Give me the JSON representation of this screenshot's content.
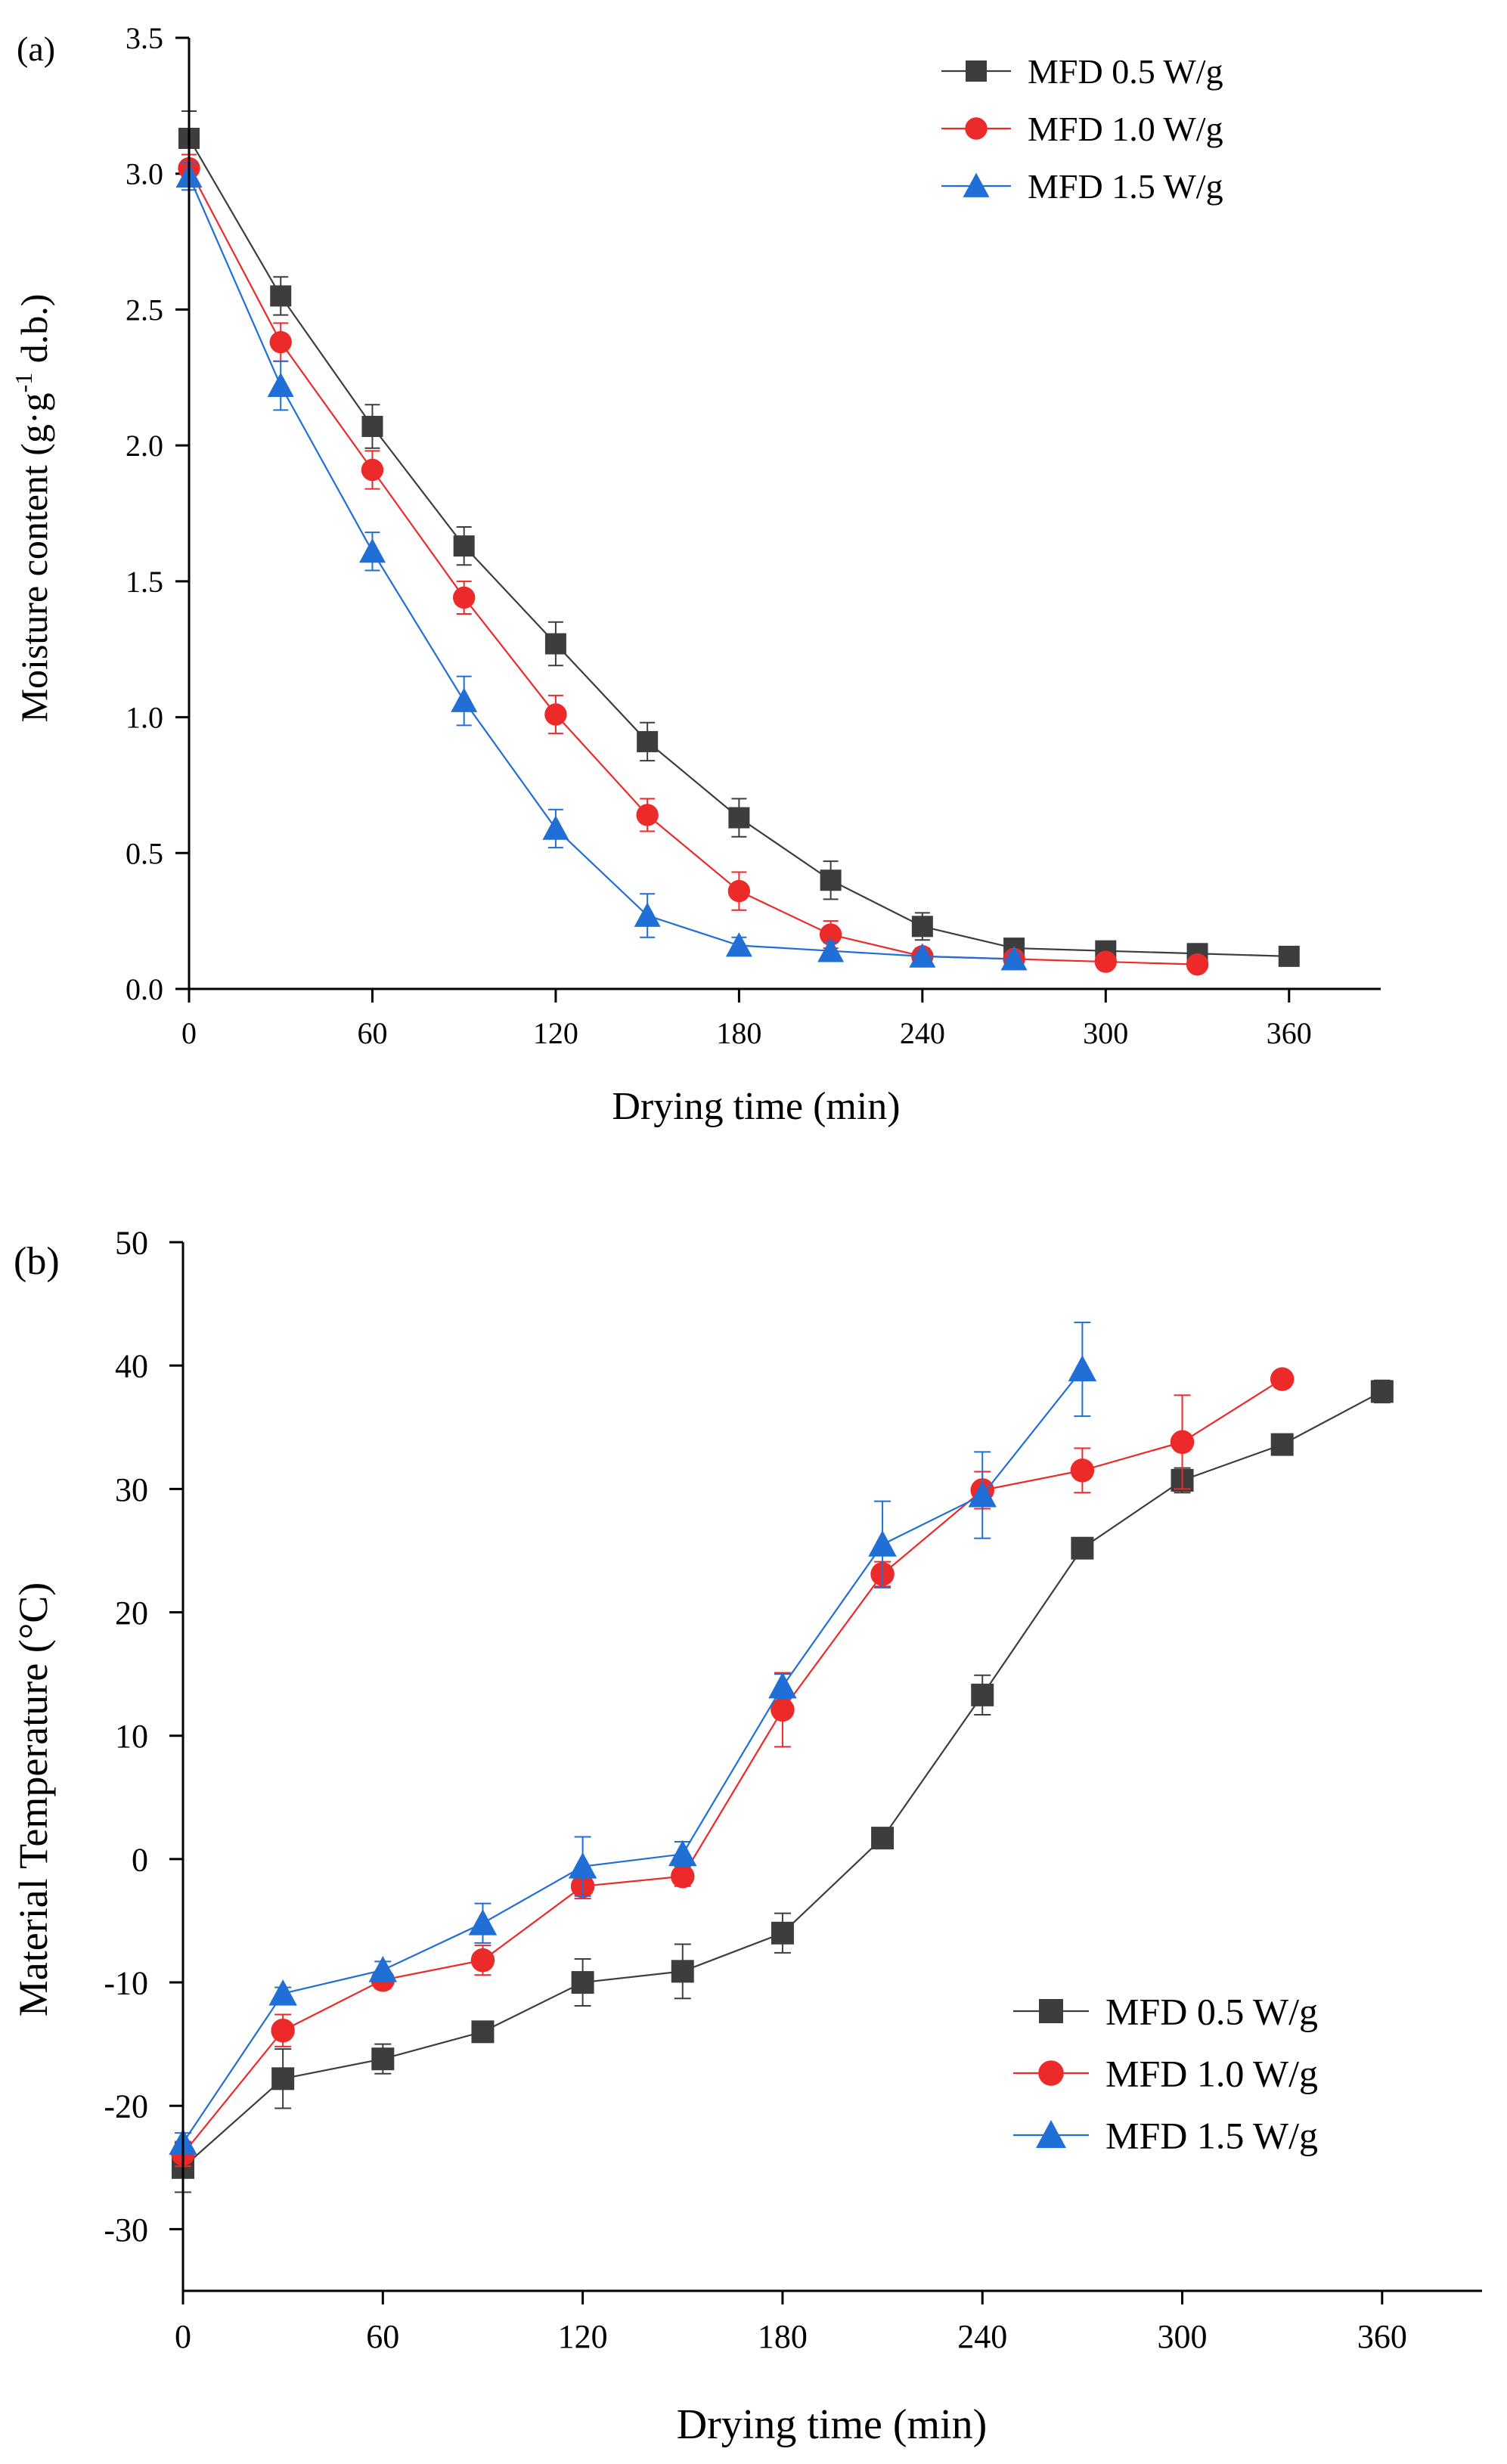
{
  "colors": {
    "series_0": "#3d3d3d",
    "series_1": "#ec2a2a",
    "series_2": "#1f6fd6",
    "axis": "#000000"
  },
  "chart_data": [
    {
      "panel_label": "(a)",
      "type": "line",
      "xlabel": "Drying time (min)",
      "ylabel_main": "Moisture content (g·g",
      "ylabel_sup": "-1",
      "ylabel_tail": " d.b.)",
      "xlim": [
        0,
        390
      ],
      "ylim": [
        0,
        3.5
      ],
      "xticks": [
        0,
        60,
        120,
        180,
        240,
        300,
        360
      ],
      "yticks": [
        0.0,
        0.5,
        1.0,
        1.5,
        2.0,
        2.5,
        3.0,
        3.5
      ],
      "xtick_labels": [
        "0",
        "60",
        "120",
        "180",
        "240",
        "300",
        "360"
      ],
      "ytick_labels": [
        "0.0",
        "0.5",
        "1.0",
        "1.5",
        "2.0",
        "2.5",
        "3.0",
        "3.5"
      ],
      "legend_position": "top-right",
      "series": [
        {
          "name": "MFD 0.5 W/g",
          "marker": "square",
          "x": [
            0,
            30,
            60,
            90,
            120,
            150,
            180,
            210,
            240,
            270,
            300,
            330,
            360
          ],
          "y": [
            3.13,
            2.55,
            2.07,
            1.63,
            1.27,
            0.91,
            0.63,
            0.4,
            0.23,
            0.15,
            0.14,
            0.13,
            0.12
          ],
          "err": [
            0.1,
            0.07,
            0.08,
            0.07,
            0.08,
            0.07,
            0.07,
            0.07,
            0.05,
            0.02,
            0.02,
            0.02,
            0.02
          ]
        },
        {
          "name": "MFD 1.0 W/g",
          "marker": "circle",
          "x": [
            0,
            30,
            60,
            90,
            120,
            150,
            180,
            210,
            240,
            270,
            300,
            330
          ],
          "y": [
            3.02,
            2.38,
            1.91,
            1.44,
            1.01,
            0.64,
            0.36,
            0.2,
            0.12,
            0.11,
            0.1,
            0.09
          ],
          "err": [
            0.05,
            0.07,
            0.07,
            0.06,
            0.07,
            0.06,
            0.07,
            0.05,
            0.03,
            0.02,
            0.02,
            0.02
          ]
        },
        {
          "name": "MFD 1.5 W/g",
          "marker": "triangle",
          "x": [
            0,
            30,
            60,
            90,
            120,
            150,
            180,
            210,
            240,
            270
          ],
          "y": [
            2.99,
            2.22,
            1.61,
            1.06,
            0.59,
            0.27,
            0.16,
            0.14,
            0.12,
            0.11
          ],
          "err": [
            0.05,
            0.09,
            0.07,
            0.09,
            0.07,
            0.08,
            0.03,
            0.03,
            0.02,
            0.02
          ]
        }
      ]
    },
    {
      "panel_label": "(b)",
      "type": "line",
      "xlabel": "Drying time (min)",
      "ylabel_main": "Material Temperature (°C)",
      "ylabel_sup": "",
      "ylabel_tail": "",
      "xlim": [
        0,
        390
      ],
      "ylim": [
        -35,
        50
      ],
      "xticks": [
        0,
        60,
        120,
        180,
        240,
        300,
        360
      ],
      "yticks": [
        -30,
        -20,
        -10,
        0,
        10,
        20,
        30,
        40,
        50
      ],
      "xtick_labels": [
        "0",
        "60",
        "120",
        "180",
        "240",
        "300",
        "360"
      ],
      "ytick_labels": [
        "-30",
        "-20",
        "-10",
        "0",
        "10",
        "20",
        "30",
        "40",
        "50"
      ],
      "legend_position": "bottom-right",
      "series": [
        {
          "name": "MFD 0.5 W/g",
          "marker": "square",
          "x": [
            0,
            30,
            60,
            90,
            120,
            150,
            180,
            210,
            240,
            270,
            300,
            330,
            360
          ],
          "y": [
            -25.0,
            -17.8,
            -16.2,
            -14.0,
            -10.0,
            -9.1,
            -6.0,
            1.7,
            13.3,
            25.2,
            30.7,
            33.6,
            37.9
          ],
          "err": [
            2.0,
            2.4,
            1.2,
            0.6,
            1.9,
            2.2,
            1.6,
            0.6,
            1.6,
            0.6,
            1.0,
            0.5,
            0.9
          ]
        },
        {
          "name": "MFD 1.0 W/g",
          "marker": "circle",
          "x": [
            0,
            30,
            60,
            90,
            120,
            150,
            180,
            210,
            240,
            270,
            300,
            330
          ],
          "y": [
            -23.9,
            -13.9,
            -9.8,
            -8.2,
            -2.2,
            -1.4,
            12.1,
            23.1,
            29.9,
            31.5,
            33.8,
            38.9
          ],
          "err": [
            1.0,
            1.3,
            0.7,
            1.2,
            1.0,
            0.8,
            3.0,
            1.0,
            1.5,
            1.8,
            3.8,
            0.4
          ]
        },
        {
          "name": "MFD 1.5 W/g",
          "marker": "triangle",
          "x": [
            0,
            30,
            60,
            90,
            120,
            150,
            180,
            210,
            240,
            270
          ],
          "y": [
            -23.0,
            -10.9,
            -9.0,
            -5.2,
            -0.6,
            0.4,
            14.0,
            25.5,
            29.5,
            39.7
          ],
          "err": [
            0.8,
            0.5,
            0.7,
            1.6,
            2.4,
            1.0,
            1.0,
            3.5,
            3.5,
            3.8
          ]
        }
      ]
    }
  ]
}
